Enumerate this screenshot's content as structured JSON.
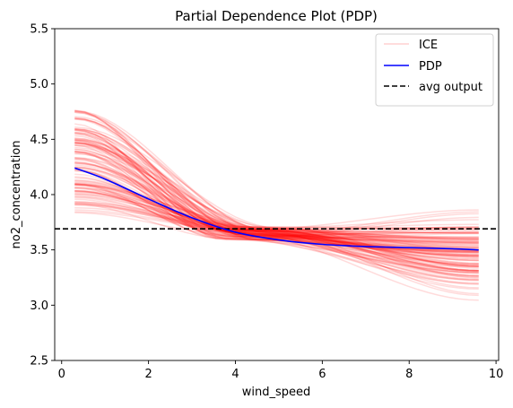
{
  "chart_data": {
    "type": "line",
    "title": "Partial Dependence Plot (PDP)",
    "xlabel": "wind_speed",
    "ylabel": "no2_concentration",
    "xlim": [
      -0.16,
      10.06
    ],
    "ylim": [
      2.5,
      5.5
    ],
    "x_ticks": [
      0,
      2,
      4,
      6,
      8,
      10
    ],
    "y_ticks": [
      2.5,
      3.0,
      3.5,
      4.0,
      4.5,
      5.0,
      5.5
    ],
    "grid": false,
    "legend_position": "top-right",
    "x": [
      0.3,
      1.0,
      2.0,
      3.0,
      4.0,
      5.0,
      6.0,
      7.0,
      8.0,
      9.0,
      9.6
    ],
    "series": [
      {
        "name": "ICE",
        "color": "#ff0000",
        "style": "solid",
        "count": 120,
        "start_range": [
          3.82,
          4.78
        ],
        "converge_value": 3.65,
        "end_range": [
          3.02,
          3.92
        ]
      },
      {
        "name": "PDP",
        "color": "#0000ff",
        "style": "solid",
        "values": [
          4.24,
          4.14,
          3.96,
          3.79,
          3.66,
          3.59,
          3.55,
          3.53,
          3.52,
          3.51,
          3.5
        ]
      },
      {
        "name": "avg output",
        "color": "#000000",
        "style": "dashed",
        "value": 3.69
      }
    ]
  }
}
